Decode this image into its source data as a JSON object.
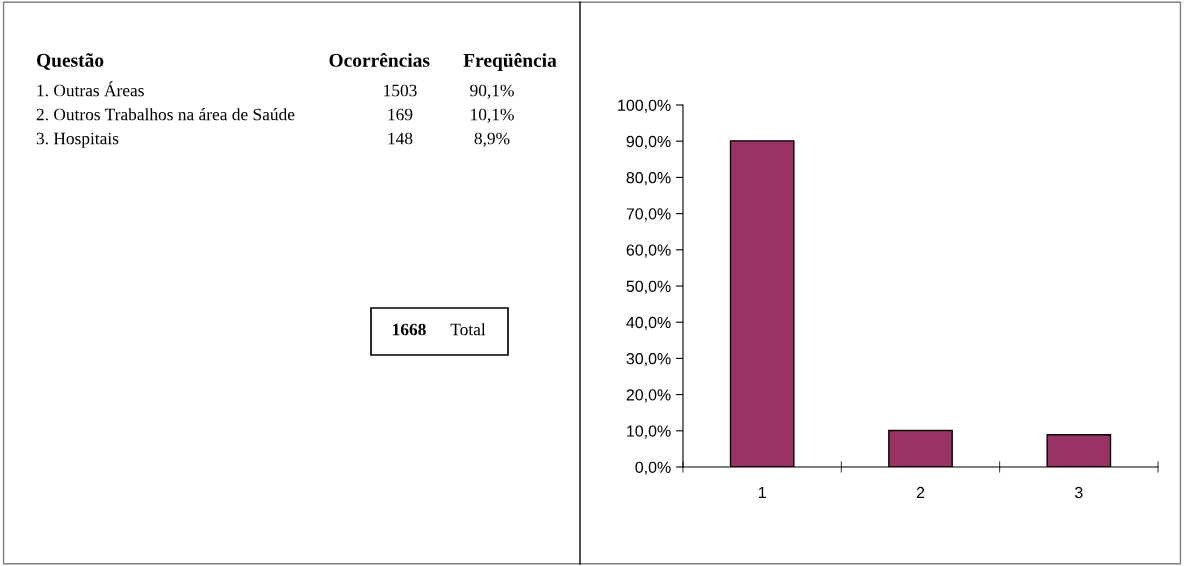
{
  "chart_data": [
    {
      "type": "other",
      "annotations": [
        "Questão",
        "Ocorrências",
        "Freqüência",
        "1. Outras Áreas",
        "1503",
        "90,1%",
        "2. Outros Trabalhos na área de Saúde",
        "169",
        "10,1%",
        "3. Hospitais",
        "148",
        "8,9%",
        "1668",
        "Total"
      ]
    },
    {
      "type": "bar",
      "categories": [
        "1",
        "2",
        "3"
      ],
      "values": [
        90.1,
        10.1,
        8.9
      ],
      "color": "#993366",
      "ylim": [
        0,
        100
      ],
      "yticks": [
        {
          "value": 0,
          "label": "0,0%"
        },
        {
          "value": 10,
          "label": "10,0%"
        },
        {
          "value": 20,
          "label": "20,0%"
        },
        {
          "value": 30,
          "label": "30,0%"
        },
        {
          "value": 40,
          "label": "40,0%"
        },
        {
          "value": 50,
          "label": "50,0%"
        },
        {
          "value": 60,
          "label": "60,0%"
        },
        {
          "value": 70,
          "label": "70,0%"
        },
        {
          "value": 80,
          "label": "80,0%"
        },
        {
          "value": 90,
          "label": "90,0%"
        },
        {
          "value": 100,
          "label": "100,0%"
        }
      ],
      "grid": false,
      "legend": false
    }
  ]
}
